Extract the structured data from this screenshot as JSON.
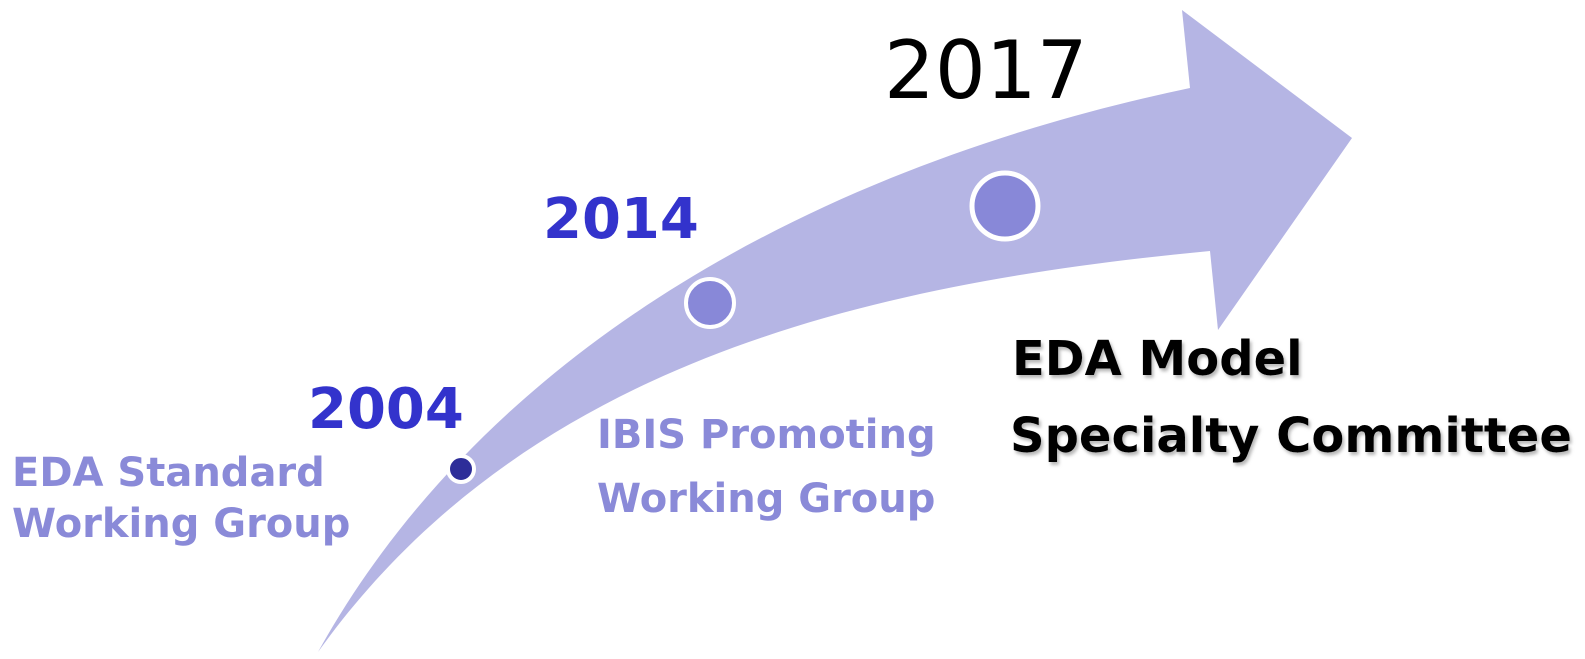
{
  "milestones": [
    {
      "year": "2004",
      "label": [
        "EDA Standard",
        "Working Group"
      ]
    },
    {
      "year": "2014",
      "label": [
        "IBIS Promoting",
        "Working Group"
      ]
    },
    {
      "year": "2017",
      "label": [
        "EDA Model",
        "Specialty Committee"
      ]
    }
  ]
}
